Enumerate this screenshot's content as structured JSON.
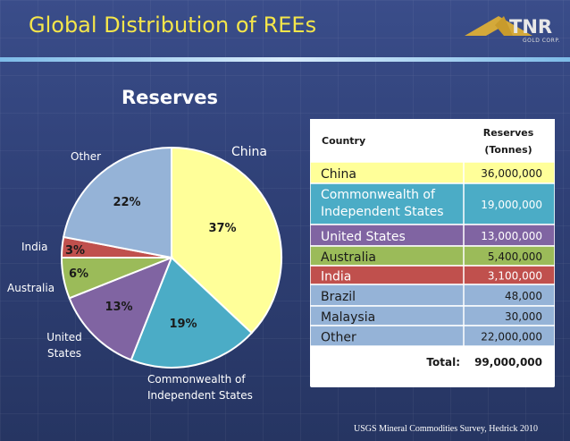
{
  "title": "Global Distribution of REEs",
  "logo": {
    "name": "TNR",
    "sub": "GOLD CORP."
  },
  "source": "USGS Mineral Commodities Survey, Hedrick 2010",
  "colors": {
    "title": "#f5e64a",
    "china": "#ffff99",
    "cis": "#4bacc6",
    "us": "#8064a2",
    "australia": "#9bbb59",
    "india": "#c0504d",
    "other": "#95b3d7"
  },
  "chart_data": {
    "type": "pie",
    "title": "Reserves",
    "slices": [
      {
        "label": "China",
        "value": 37,
        "pct_label": "37%",
        "color": "#ffff99"
      },
      {
        "label": "Commonwealth of Independent States",
        "value": 19,
        "pct_label": "19%",
        "color": "#4bacc6"
      },
      {
        "label": "United States",
        "value": 13,
        "pct_label": "13%",
        "color": "#8064a2"
      },
      {
        "label": "Australia",
        "value": 6,
        "pct_label": "6%",
        "color": "#9bbb59"
      },
      {
        "label": "India",
        "value": 3,
        "pct_label": "3%",
        "color": "#c0504d"
      },
      {
        "label": "Other",
        "value": 22,
        "pct_label": "22%",
        "color": "#95b3d7"
      }
    ],
    "label_lines": {
      "China": [
        "China"
      ],
      "Commonwealth of Independent States": [
        "Commonwealth of",
        "Independent States"
      ],
      "United States": [
        "United",
        "States"
      ],
      "Australia": [
        "Australia"
      ],
      "India": [
        "India"
      ],
      "Other": [
        "Other"
      ]
    },
    "table": {
      "headers": [
        "Country",
        "Reserves (Tonnes)"
      ],
      "rows": [
        {
          "country": "China",
          "reserves": "36,000,000",
          "color": "#ffff99"
        },
        {
          "country": "Commonwealth of Independent States",
          "reserves": "19,000,000",
          "color": "#4bacc6"
        },
        {
          "country": "United States",
          "reserves": "13,000,000",
          "color": "#8064a2"
        },
        {
          "country": "Australia",
          "reserves": "5,400,000",
          "color": "#9bbb59"
        },
        {
          "country": "India",
          "reserves": "3,100,000",
          "color": "#c0504d"
        },
        {
          "country": "Brazil",
          "reserves": "48,000",
          "color": "#95b3d7"
        },
        {
          "country": "Malaysia",
          "reserves": "30,000",
          "color": "#95b3d7"
        },
        {
          "country": "Other",
          "reserves": "22,000,000",
          "color": "#95b3d7"
        }
      ],
      "total_label": "Total:",
      "total_value": "99,000,000"
    }
  }
}
